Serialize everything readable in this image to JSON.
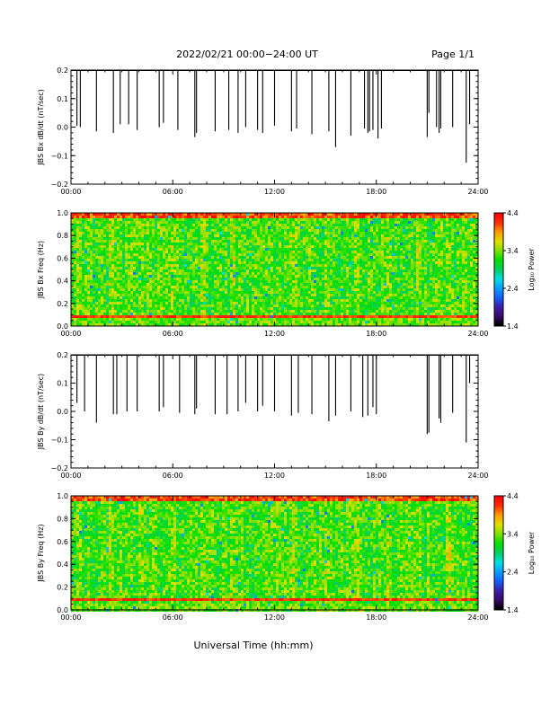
{
  "header": {
    "title": "2022/02/21  00:00−24:00 UT",
    "page": "Page 1/1"
  },
  "x_axis_label": "Universal Time (hh:mm)",
  "colors": {
    "frame": "#000000",
    "colorbar": [
      "#000000",
      "#3b0a6e",
      "#3b1ea8",
      "#1460ff",
      "#0aa0ff",
      "#00e0e0",
      "#00d060",
      "#00e000",
      "#7ee000",
      "#e0e000",
      "#ffa000",
      "#ff3000",
      "#ff0000"
    ]
  },
  "chart_data": [
    {
      "type": "bar",
      "name": "Bx dB/dt",
      "ylabel": "JBS Bx dB/dt (nT/sec)",
      "ylim": [
        -0.2,
        0.2
      ],
      "yticks": [
        "0.2",
        "0.1",
        "0.0",
        "−0.1",
        "−0.2"
      ],
      "ytick_values": [
        0.2,
        0.1,
        0.0,
        -0.1,
        -0.2
      ],
      "xlim": [
        0,
        24
      ],
      "xticks": [
        "00:00",
        "06:00",
        "12:00",
        "18:00",
        "24:00"
      ],
      "spikes": [
        [
          0.35,
          0.005
        ],
        [
          0.55,
          0.0
        ],
        [
          1.5,
          -0.015
        ],
        [
          2.5,
          -0.02
        ],
        [
          2.9,
          0.01
        ],
        [
          3.4,
          0.01
        ],
        [
          3.9,
          -0.01
        ],
        [
          5.2,
          0.0
        ],
        [
          5.45,
          0.015
        ],
        [
          6.3,
          -0.01
        ],
        [
          7.3,
          -0.035
        ],
        [
          7.4,
          -0.02
        ],
        [
          8.5,
          -0.015
        ],
        [
          9.3,
          -0.01
        ],
        [
          9.85,
          -0.02
        ],
        [
          10.3,
          0.0
        ],
        [
          11.0,
          -0.01
        ],
        [
          11.3,
          -0.02
        ],
        [
          12.0,
          0.005
        ],
        [
          13.0,
          -0.015
        ],
        [
          13.3,
          -0.005
        ],
        [
          14.2,
          -0.025
        ],
        [
          15.2,
          -0.015
        ],
        [
          15.6,
          -0.07
        ],
        [
          16.5,
          -0.03
        ],
        [
          17.3,
          -0.005
        ],
        [
          17.5,
          -0.02
        ],
        [
          17.6,
          -0.015
        ],
        [
          17.8,
          -0.01
        ],
        [
          18.1,
          -0.04
        ],
        [
          18.3,
          -0.005
        ],
        [
          21.0,
          -0.035
        ],
        [
          21.1,
          0.05
        ],
        [
          21.55,
          0.0
        ],
        [
          21.7,
          -0.02
        ],
        [
          21.8,
          -0.005
        ],
        [
          22.5,
          0.0
        ],
        [
          23.3,
          -0.125
        ],
        [
          23.5,
          0.01
        ]
      ]
    },
    {
      "type": "heatmap",
      "name": "Bx Freq spectrogram",
      "ylabel": "JBS Bx Freq (Hz)",
      "ylim": [
        0,
        1.0
      ],
      "yticks": [
        "1.0",
        "0.8",
        "0.6",
        "0.4",
        "0.2",
        "0.0"
      ],
      "ytick_values": [
        1.0,
        0.8,
        0.6,
        0.4,
        0.2,
        0.0
      ],
      "xlim": [
        0,
        24
      ],
      "xticks": [
        "00:00",
        "06:00",
        "12:00",
        "18:00",
        "24:00"
      ],
      "colorbar": {
        "label": "Log₁₀ Power",
        "range": [
          1.4,
          4.4
        ],
        "ticks": [
          "4.4",
          "3.4",
          "2.4",
          "1.4"
        ],
        "tick_values": [
          4.4,
          3.4,
          2.4,
          1.4
        ]
      },
      "features": {
        "background_level": 3.25,
        "high_freq_band": [
          0.95,
          1.0
        ],
        "high_freq_level": 4.0,
        "low_freq_line_hz": 0.08,
        "low_freq_line_level": 4.3
      }
    },
    {
      "type": "bar",
      "name": "By dB/dt",
      "ylabel": "JBS By dB/dt (nT/sec)",
      "ylim": [
        -0.2,
        0.2
      ],
      "yticks": [
        "0.2",
        "0.1",
        "0.0",
        "−0.1",
        "−0.2"
      ],
      "ytick_values": [
        0.2,
        0.1,
        0.0,
        -0.1,
        -0.2
      ],
      "xlim": [
        0,
        24
      ],
      "xticks": [
        "00:00",
        "06:00",
        "12:00",
        "18:00",
        "24:00"
      ],
      "spikes": [
        [
          0.35,
          0.03
        ],
        [
          0.8,
          0.0
        ],
        [
          1.5,
          -0.04
        ],
        [
          2.5,
          -0.01
        ],
        [
          2.7,
          -0.01
        ],
        [
          3.3,
          0.0
        ],
        [
          3.9,
          0.0
        ],
        [
          5.2,
          0.0
        ],
        [
          5.45,
          0.015
        ],
        [
          6.4,
          -0.005
        ],
        [
          7.3,
          -0.01
        ],
        [
          7.4,
          0.01
        ],
        [
          8.5,
          -0.01
        ],
        [
          9.2,
          -0.01
        ],
        [
          9.85,
          0.0
        ],
        [
          10.3,
          0.03
        ],
        [
          11.0,
          0.0
        ],
        [
          11.3,
          0.02
        ],
        [
          12.0,
          0.0
        ],
        [
          13.0,
          -0.015
        ],
        [
          13.4,
          -0.005
        ],
        [
          14.2,
          -0.01
        ],
        [
          15.2,
          -0.035
        ],
        [
          15.6,
          -0.015
        ],
        [
          16.5,
          0.0
        ],
        [
          17.2,
          -0.02
        ],
        [
          17.5,
          -0.015
        ],
        [
          17.8,
          0.015
        ],
        [
          18.0,
          -0.01
        ],
        [
          21.0,
          -0.08
        ],
        [
          21.1,
          -0.075
        ],
        [
          21.7,
          -0.025
        ],
        [
          21.8,
          -0.04
        ],
        [
          22.5,
          -0.005
        ],
        [
          23.3,
          -0.11
        ],
        [
          23.5,
          0.1
        ]
      ]
    },
    {
      "type": "heatmap",
      "name": "By Freq spectrogram",
      "ylabel": "JBS By Freq (Hz)",
      "ylim": [
        0,
        1.0
      ],
      "yticks": [
        "1.0",
        "0.8",
        "0.6",
        "0.4",
        "0.2",
        "0.0"
      ],
      "ytick_values": [
        1.0,
        0.8,
        0.6,
        0.4,
        0.2,
        0.0
      ],
      "xlim": [
        0,
        24
      ],
      "xticks": [
        "00:00",
        "06:00",
        "12:00",
        "18:00",
        "24:00"
      ],
      "colorbar": {
        "label": "Log₁₀ Power",
        "range": [
          1.4,
          4.4
        ],
        "ticks": [
          "4.4",
          "3.4",
          "2.4",
          "1.4"
        ],
        "tick_values": [
          4.4,
          3.4,
          2.4,
          1.4
        ]
      },
      "features": {
        "background_level": 3.25,
        "high_freq_band": [
          0.95,
          1.0
        ],
        "high_freq_level": 4.0,
        "low_freq_line_hz": 0.08,
        "low_freq_line_level": 4.3
      }
    }
  ]
}
